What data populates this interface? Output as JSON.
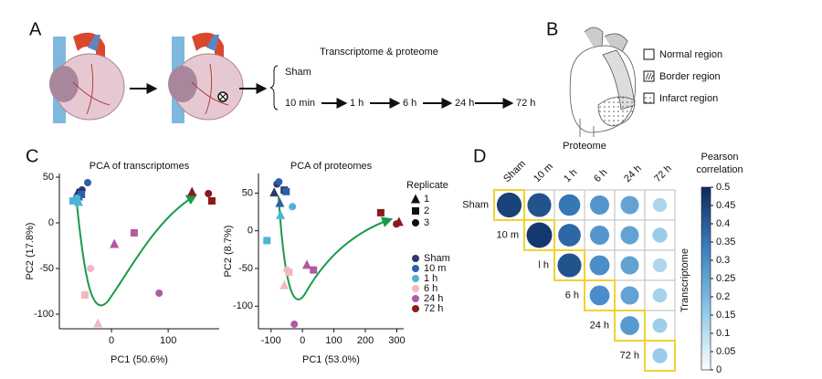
{
  "panel_a": {
    "label": "A",
    "title": "Transcriptome & proteome",
    "sham": "Sham",
    "timeline": [
      "10 min",
      "1 h",
      "6 h",
      "24 h",
      "72 h"
    ]
  },
  "panel_b": {
    "label": "B",
    "legend": [
      "Normal region",
      "Border region",
      "Infarct region"
    ]
  },
  "panel_c": {
    "label": "C",
    "legend_title": "Replicate",
    "markers": [
      "triangle",
      "square",
      "circle"
    ],
    "marker_labels": [
      "1",
      "2",
      "3"
    ]
  },
  "panel_d": {
    "label": "D"
  },
  "chart_data": [
    {
      "type": "scatter",
      "title": "PCA of transcriptomes",
      "xlabel": "PC1 (50.6%)",
      "ylabel": "PC2 (17.8%)",
      "xlim": [
        -92,
        190
      ],
      "ylim": [
        -116,
        54
      ],
      "xticks": [
        0,
        100
      ],
      "yticks": [
        -100,
        -50,
        0,
        50
      ],
      "series": [
        {
          "name": "Sham",
          "color": "#2b3a6e",
          "x": [
            -60,
            -55,
            -52
          ],
          "values": [
            33,
            33,
            36
          ]
        },
        {
          "name": "10 m",
          "color": "#2f5fa8",
          "x": [
            -58,
            -53,
            -42
          ],
          "values": [
            29,
            31,
            44
          ]
        },
        {
          "name": "1 h",
          "color": "#4fb3d9",
          "x": [
            -58,
            -68,
            -61
          ],
          "values": [
            23,
            24,
            27
          ]
        },
        {
          "name": "6 h",
          "color": "#f2b8c0",
          "x": [
            -24,
            -47,
            -37
          ],
          "values": [
            -110,
            -79,
            -50
          ]
        },
        {
          "name": "24 h",
          "color": "#b05aa5",
          "x": [
            5,
            40,
            84
          ],
          "values": [
            -23,
            -11,
            -77
          ]
        },
        {
          "name": "72 h",
          "color": "#8b1a1a",
          "x": [
            142,
            177,
            171
          ],
          "values": [
            34,
            24,
            32
          ]
        }
      ]
    },
    {
      "type": "scatter",
      "title": "PCA of proteomes",
      "xlabel": "PC1 (53.0%)",
      "ylabel": "PC2 (8.7%)",
      "xlim": [
        -140,
        322
      ],
      "ylim": [
        -130,
        76
      ],
      "xticks": [
        -100,
        0,
        100,
        200,
        300
      ],
      "yticks": [
        -100,
        -50,
        0,
        50
      ],
      "series": [
        {
          "name": "Sham",
          "color": "#2b3a6e",
          "x": [
            -90,
            -58,
            -81
          ],
          "values": [
            51,
            54,
            62
          ]
        },
        {
          "name": "10 m",
          "color": "#2f5fa8",
          "x": [
            -72,
            -52,
            -75
          ],
          "values": [
            37,
            52,
            65
          ]
        },
        {
          "name": "1 h",
          "color": "#4fb3d9",
          "x": [
            -70,
            -113,
            -32
          ],
          "values": [
            21,
            -13,
            32
          ]
        },
        {
          "name": "6 h",
          "color": "#f2b8c0",
          "x": [
            -58,
            -43,
            -49
          ],
          "values": [
            -72,
            -55,
            -52
          ]
        },
        {
          "name": "24 h",
          "color": "#b05aa5",
          "x": [
            14,
            35,
            -26
          ],
          "values": [
            -45,
            -52,
            -124
          ]
        },
        {
          "name": "72 h",
          "color": "#8b1a1a",
          "x": [
            307,
            249,
            299
          ],
          "values": [
            12,
            24,
            9
          ]
        }
      ]
    },
    {
      "type": "correlation",
      "title": "Proteome",
      "y_title": "Transcriptome",
      "x_categories": [
        "Sham",
        "10 m",
        "1 h",
        "6 h",
        "24 h",
        "72 h"
      ],
      "y_categories": [
        "Sham",
        "10 m",
        "l h",
        "6 h",
        "24 h",
        "72 h"
      ],
      "values": [
        [
          0.45,
          0.42,
          0.35,
          0.28,
          0.25,
          0.12
        ],
        [
          null,
          0.47,
          0.38,
          0.28,
          0.25,
          0.15
        ],
        [
          null,
          null,
          0.42,
          0.3,
          0.25,
          0.12
        ],
        [
          null,
          null,
          null,
          0.3,
          0.25,
          0.13
        ],
        [
          null,
          null,
          null,
          null,
          0.27,
          0.14
        ],
        [
          null,
          null,
          null,
          null,
          null,
          0.15
        ]
      ],
      "colorbar_title": [
        "Pearson",
        "correlation"
      ],
      "clim": [
        0,
        0.5
      ],
      "cticks": [
        0,
        0.05,
        0.1,
        0.15,
        0.2,
        0.25,
        0.3,
        0.35,
        0.4,
        0.45,
        0.5
      ],
      "colormap": [
        "#ffffff",
        "#8cc6e6",
        "#3a7fc0",
        "#0d2a5c"
      ]
    }
  ]
}
